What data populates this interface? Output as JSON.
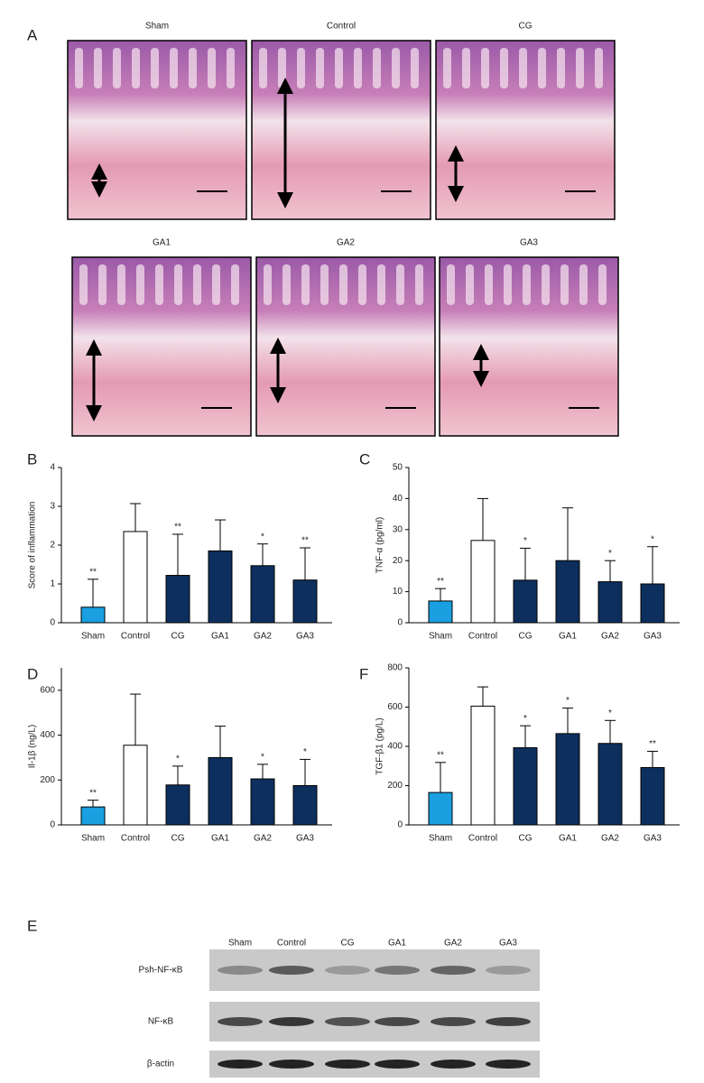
{
  "histology": {
    "panel": "A",
    "images": [
      "Sham",
      "Control",
      "CG",
      "GA1",
      "GA2",
      "GA3"
    ]
  },
  "chart_data": [
    {
      "type": "bar",
      "panel": "B",
      "ylabel": "Score of inflammation",
      "categories": [
        "Sham",
        "Control",
        "CG",
        "GA1",
        "GA2",
        "GA3"
      ],
      "values": [
        0.4,
        2.35,
        1.22,
        1.85,
        1.47,
        1.1
      ],
      "errors": [
        0.72,
        0.72,
        1.06,
        0.8,
        0.56,
        0.83
      ],
      "colors": [
        "#1a9fe0",
        "#ffffff",
        "#0d2f5e",
        "#0d2f5e",
        "#0d2f5e",
        "#0d2f5e"
      ],
      "annotations": [
        "**",
        null,
        "**",
        null,
        "*",
        "**"
      ],
      "ylim": [
        0,
        4
      ],
      "yticks": [
        0,
        1,
        2,
        3,
        4
      ]
    },
    {
      "type": "bar",
      "panel": "C",
      "ylabel": "TNF-α (pg/ml)",
      "categories": [
        "Sham",
        "Control",
        "CG",
        "GA1",
        "GA2",
        "GA3"
      ],
      "values": [
        7,
        26.5,
        13.7,
        20,
        13.2,
        12.5
      ],
      "errors": [
        4,
        13.5,
        10.3,
        17,
        6.8,
        12
      ],
      "colors": [
        "#1a9fe0",
        "#ffffff",
        "#0d2f5e",
        "#0d2f5e",
        "#0d2f5e",
        "#0d2f5e"
      ],
      "annotations": [
        "**",
        null,
        "*",
        null,
        "*",
        "*"
      ],
      "ylim": [
        0,
        50
      ],
      "yticks": [
        0,
        10,
        20,
        30,
        40,
        50
      ]
    },
    {
      "type": "bar",
      "panel": "D",
      "ylabel": "Il-1β (ng/L)",
      "categories": [
        "Sham",
        "Control",
        "CG",
        "GA1",
        "GA2",
        "GA3"
      ],
      "values": [
        80,
        355,
        178,
        300,
        205,
        175
      ],
      "errors": [
        30,
        228,
        84,
        140,
        65,
        117
      ],
      "colors": [
        "#1a9fe0",
        "#ffffff",
        "#0d2f5e",
        "#0d2f5e",
        "#0d2f5e",
        "#0d2f5e"
      ],
      "annotations": [
        "**",
        null,
        "*",
        null,
        "*",
        "*"
      ],
      "ylim": [
        0,
        700
      ],
      "yticks": [
        0,
        200,
        400,
        600
      ]
    },
    {
      "type": "bar",
      "panel": "F",
      "ylabel": "TGF-β1 (pg/L)",
      "categories": [
        "Sham",
        "Control",
        "CG",
        "GA1",
        "GA2",
        "GA3"
      ],
      "values": [
        165,
        605,
        393,
        465,
        415,
        292
      ],
      "errors": [
        153,
        98,
        112,
        130,
        117,
        83
      ],
      "colors": [
        "#1a9fe0",
        "#ffffff",
        "#0d2f5e",
        "#0d2f5e",
        "#0d2f5e",
        "#0d2f5e"
      ],
      "annotations": [
        "**",
        null,
        "*",
        "*",
        "*",
        "**"
      ],
      "ylim": [
        0,
        800
      ],
      "yticks": [
        0,
        200,
        400,
        600,
        800
      ]
    }
  ],
  "blot": {
    "panel": "E",
    "lanes": [
      "Sham",
      "Control",
      "CG",
      "GA1",
      "GA2",
      "GA3"
    ],
    "rows": [
      "Psh-NF-κB",
      "NF-κB",
      "β-actin"
    ]
  }
}
